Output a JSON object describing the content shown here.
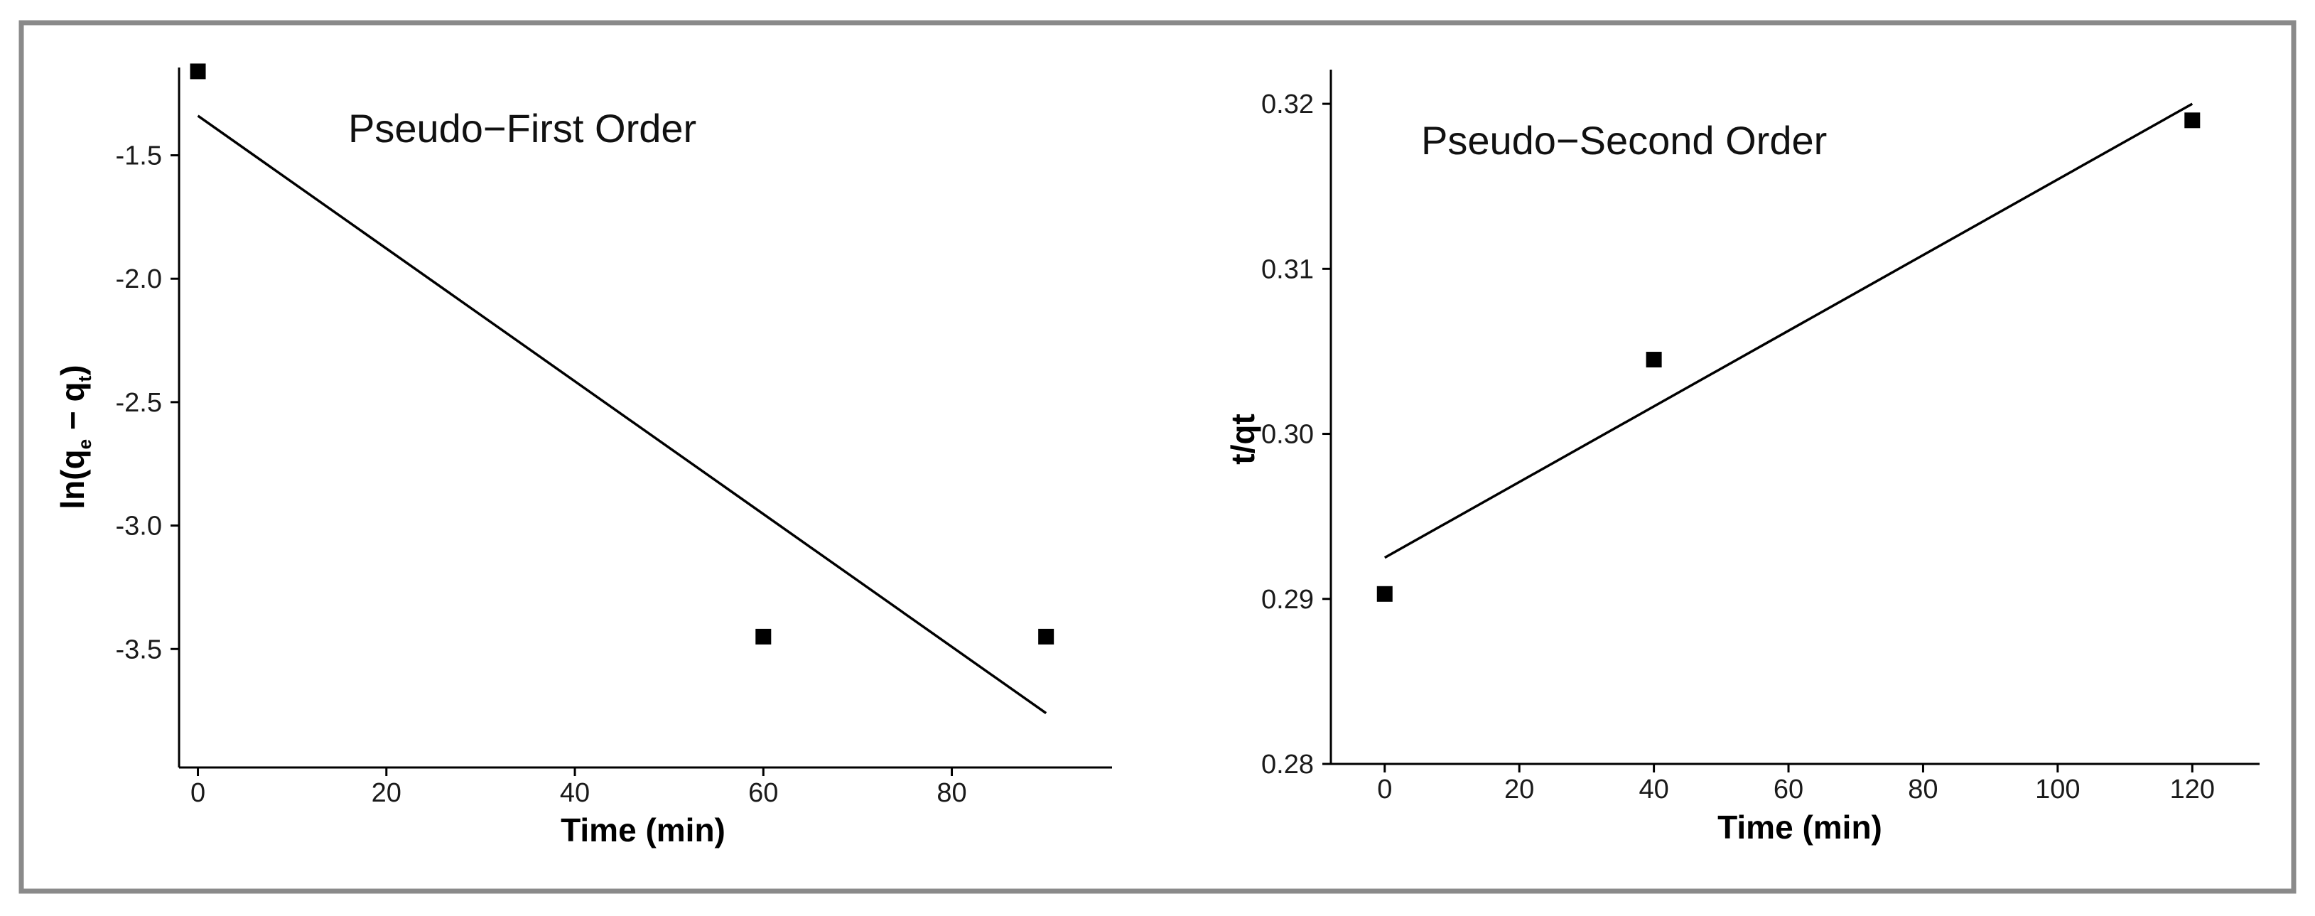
{
  "chart_data": [
    {
      "type": "scatter",
      "title": "Pseudo−First Order",
      "xlabel": "Time (min)",
      "ylabel": {
        "prefix": "ln(q",
        "sub1": "e",
        "mid": " − q",
        "sub2": "t",
        "suffix": ")"
      },
      "xlim": [
        -2,
        97
      ],
      "ylim": [
        -3.98,
        -1.13
      ],
      "x_ticks": [
        0,
        20,
        40,
        60,
        80
      ],
      "y_ticks": [
        -1.5,
        -2.0,
        -2.5,
        -3.0,
        -3.5
      ],
      "y_tick_labels": [
        "-1.5",
        "-2.0",
        "-2.5",
        "-3.0",
        "-3.5"
      ],
      "series": [
        {
          "points": [
            {
              "x": 0,
              "y": -1.16
            },
            {
              "x": 60,
              "y": -3.45
            },
            {
              "x": 90,
              "y": -3.45
            }
          ]
        }
      ],
      "fit_line": [
        {
          "x": 0,
          "y": -1.34
        },
        {
          "x": 90,
          "y": -3.76
        }
      ],
      "grid": false
    },
    {
      "type": "scatter",
      "title": "Pseudo−Second Order",
      "xlabel": "Time (min)",
      "ylabel": "t/qt",
      "xlim": [
        -8,
        130
      ],
      "ylim": [
        0.28,
        0.3222
      ],
      "x_ticks": [
        0,
        20,
        40,
        60,
        80,
        100,
        120
      ],
      "y_ticks": [
        0.28,
        0.29,
        0.3,
        0.31,
        0.32
      ],
      "y_tick_labels": [
        "0.28",
        "0.29",
        "0.30",
        "0.31",
        "0.32"
      ],
      "series": [
        {
          "points": [
            {
              "x": 0,
              "y": 0.2903
            },
            {
              "x": 40,
              "y": 0.3045
            },
            {
              "x": 120,
              "y": 0.319
            }
          ]
        }
      ],
      "fit_line": [
        {
          "x": 0,
          "y": 0.2925
        },
        {
          "x": 120,
          "y": 0.32
        }
      ],
      "grid": false
    }
  ]
}
